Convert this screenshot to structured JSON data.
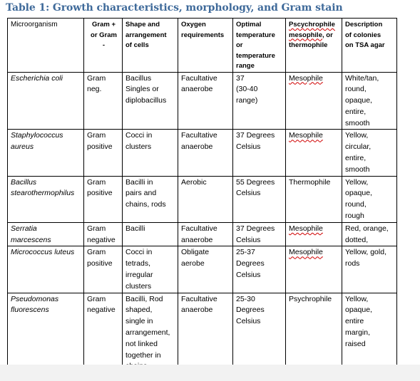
{
  "title": "Table 1: Growth characteristics, morphology, and Gram stain",
  "headers": {
    "organism": "Microorganism",
    "gram": "Gram +\nor Gram\n-",
    "shape": "Shape and\narrangement\nof cells",
    "oxygen": "Oxygen\nrequirements",
    "temp": "Optimal\ntemperature\nor\ntemperature\nrange",
    "class_line1": "Pscychrophile",
    "class_line2a": "mesophile",
    "class_line2b": ", or",
    "class_line3": "thermophile",
    "colonies": "Description\nof colonies\non TSA agar"
  },
  "rows": [
    {
      "organism": "Escherichia coli",
      "gram": "Gram\nneg.",
      "shape": "Bacillus\nSingles or\ndiplobacillus",
      "oxygen": "Facultative\nanaerobe",
      "temp": "37\n(30-40\nrange)",
      "class": "Mesophile",
      "colonies": "White/tan,\nround,\nopaque,\nentire,\nsmooth"
    },
    {
      "organism": "Staphylococcus\naureus",
      "gram": "Gram\npositive",
      "shape": "Cocci in\nclusters",
      "oxygen": "Facultative\nanaerobe",
      "temp": "37 Degrees\nCelsius",
      "class": "Mesophile",
      "colonies": "Yellow,\ncircular,\nentire,\nsmooth"
    },
    {
      "organism": "Bacillus\nstearothermophilus",
      "gram": "Gram\npositive",
      "shape": "Bacilli in\npairs and\nchains, rods",
      "oxygen": "Aerobic",
      "temp": "55 Degrees\nCelsius",
      "class": "Thermophile",
      "colonies": "Yellow,\nopaque,\nround,\nrough"
    },
    {
      "organism": "Serratia\nmarcescens",
      "gram": "Gram\nnegative",
      "shape": "Bacilli",
      "oxygen": "Facultative\nanaerobe",
      "temp": "37 Degrees\nCelsius",
      "class": "Mesophile",
      "colonies": "Red, orange,\ndotted,"
    },
    {
      "organism": "Micrococcus luteus",
      "gram": "Gram\npositive",
      "shape": "Cocci in\ntetrads,\nirregular\nclusters",
      "oxygen": "Obligate\naerobe",
      "temp": "25-37\nDegrees\nCelsius",
      "class": "Mesophile",
      "colonies": "Yellow, gold,\nrods"
    },
    {
      "organism": "Pseudomonas\nfluorescens",
      "gram": "Gram\nnegative",
      "shape": "Bacilli, Rod\nshaped,\nsingle in\narrangement,\nnot linked\ntogether in\nchains.",
      "oxygen": "Facultative\nanaerobe",
      "temp": "25-30\nDegrees\nCelsius",
      "class": "Psychrophile",
      "colonies": "Yellow,\nopaque,\nentire\nmargin,\nraised"
    }
  ]
}
